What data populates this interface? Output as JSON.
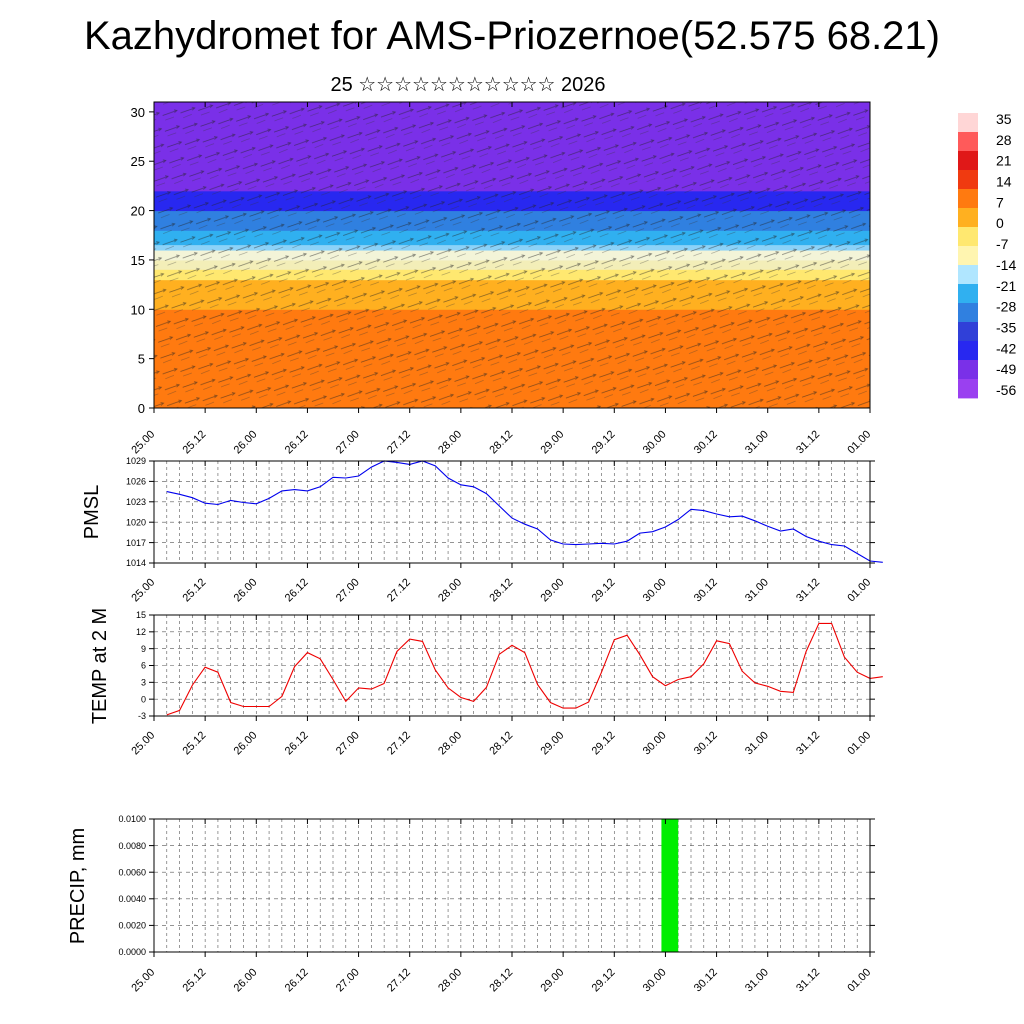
{
  "title": "Kazhydromet for AMS-Priozernoe(52.575 68.21)",
  "subtitle": "25 ☆☆☆☆☆☆☆☆☆☆☆ 2026",
  "x_ticks": [
    "25.00",
    "25.12",
    "26.00",
    "26.12",
    "27.00",
    "27.12",
    "28.00",
    "28.12",
    "29.00",
    "29.12",
    "30.00",
    "30.12",
    "31.00",
    "31.12",
    "01.00"
  ],
  "chart_data": [
    {
      "type": "heatmap",
      "name": "cross-section",
      "ylabel": "",
      "yticks": [
        0,
        5,
        10,
        15,
        20,
        25,
        30
      ],
      "ylim": [
        0,
        31
      ],
      "description_of_field": "temperature colour fill with wind vectors",
      "layers": [
        {
          "from": 0,
          "to": 4,
          "value": 7
        },
        {
          "from": 4,
          "to": 10,
          "value": 7
        },
        {
          "from": 10,
          "to": 13,
          "value": 0
        },
        {
          "from": 13,
          "to": 15,
          "value": -7
        },
        {
          "from": 15,
          "to": 16,
          "value": -14
        },
        {
          "from": 16,
          "to": 18,
          "value": -28
        },
        {
          "from": 18,
          "to": 20,
          "value": -35
        },
        {
          "from": 20,
          "to": 22,
          "value": -49
        },
        {
          "from": 22,
          "to": 23,
          "value": -56
        },
        {
          "from": 23,
          "to": 31,
          "value": -56
        }
      ],
      "colorbar": {
        "labels": [
          "35",
          "28",
          "21",
          "14",
          "7",
          "0",
          "-7",
          "-14",
          "-21",
          "-28",
          "-35",
          "-42",
          "-49",
          "-56"
        ],
        "colors": [
          "#ffd6d6",
          "#ff5a5a",
          "#e01818",
          "#f03a10",
          "#ff7a10",
          "#ffb020",
          "#ffe870",
          "#fff5b0",
          "#b0e6ff",
          "#30b0f0",
          "#3080e0",
          "#3040d8",
          "#2828f0",
          "#7a30e8",
          "#9a40f0"
        ]
      }
    },
    {
      "type": "line",
      "name": "PMSL",
      "ylabel": "PMSL",
      "ylim": [
        1014,
        1029
      ],
      "yticks": [
        1014,
        1017,
        1020,
        1023,
        1026,
        1029
      ],
      "color": "#0000ee",
      "x_start": 25.0,
      "x_step_hours": 3,
      "values": [
        1024.5,
        1024.1,
        1023.6,
        1022.8,
        1022.6,
        1023.2,
        1022.9,
        1022.7,
        1023.5,
        1024.6,
        1024.8,
        1024.6,
        1025.2,
        1026.6,
        1026.5,
        1026.8,
        1028.1,
        1029.0,
        1028.8,
        1028.5,
        1029.0,
        1028.3,
        1026.5,
        1025.5,
        1025.2,
        1024.2,
        1022.4,
        1020.6,
        1019.7,
        1019.0,
        1017.4,
        1016.8,
        1016.7,
        1016.8,
        1016.9,
        1016.8,
        1017.2,
        1018.4,
        1018.6,
        1019.3,
        1020.4,
        1021.9,
        1021.7,
        1021.2,
        1020.8,
        1020.9,
        1020.2,
        1019.4,
        1018.7,
        1019.0,
        1017.9,
        1017.2,
        1016.7,
        1016.5,
        1015.4,
        1014.3,
        1014.1
      ]
    },
    {
      "type": "line",
      "name": "TEMP at 2 M",
      "ylabel": "TEMP at 2 M",
      "ylim": [
        -3,
        15
      ],
      "yticks": [
        -3,
        0,
        3,
        6,
        9,
        12,
        15
      ],
      "color": "#ee0000",
      "x_start": 25.0,
      "x_step_hours": 3,
      "values": [
        -2.8,
        -2.0,
        2.5,
        5.7,
        4.8,
        -0.6,
        -1.3,
        -1.3,
        -1.3,
        0.5,
        5.8,
        8.3,
        7.2,
        3.5,
        -0.4,
        2.0,
        1.8,
        2.8,
        8.5,
        10.7,
        10.3,
        5.2,
        2.0,
        0.3,
        -0.4,
        2.1,
        8.0,
        9.6,
        8.3,
        2.6,
        -0.6,
        -1.6,
        -1.6,
        -0.5,
        4.8,
        10.6,
        11.4,
        7.9,
        4.0,
        2.4,
        3.5,
        4.0,
        6.3,
        10.4,
        9.9,
        5.0,
        2.9,
        2.3,
        1.4,
        1.2,
        8.5,
        13.5,
        13.5,
        7.5,
        4.8,
        3.7,
        4.0
      ]
    },
    {
      "type": "bar",
      "name": "PRECIP",
      "ylabel": "PRECIP, mm",
      "ylim": [
        0,
        0.01
      ],
      "yticks": [
        "0.0000",
        "0.0020",
        "0.0040",
        "0.0060",
        "0.0080",
        "0.0100"
      ],
      "color": "#00ee00",
      "bars": [
        {
          "x": 30.0,
          "width_hours": 3,
          "value": 0.01
        }
      ]
    }
  ]
}
